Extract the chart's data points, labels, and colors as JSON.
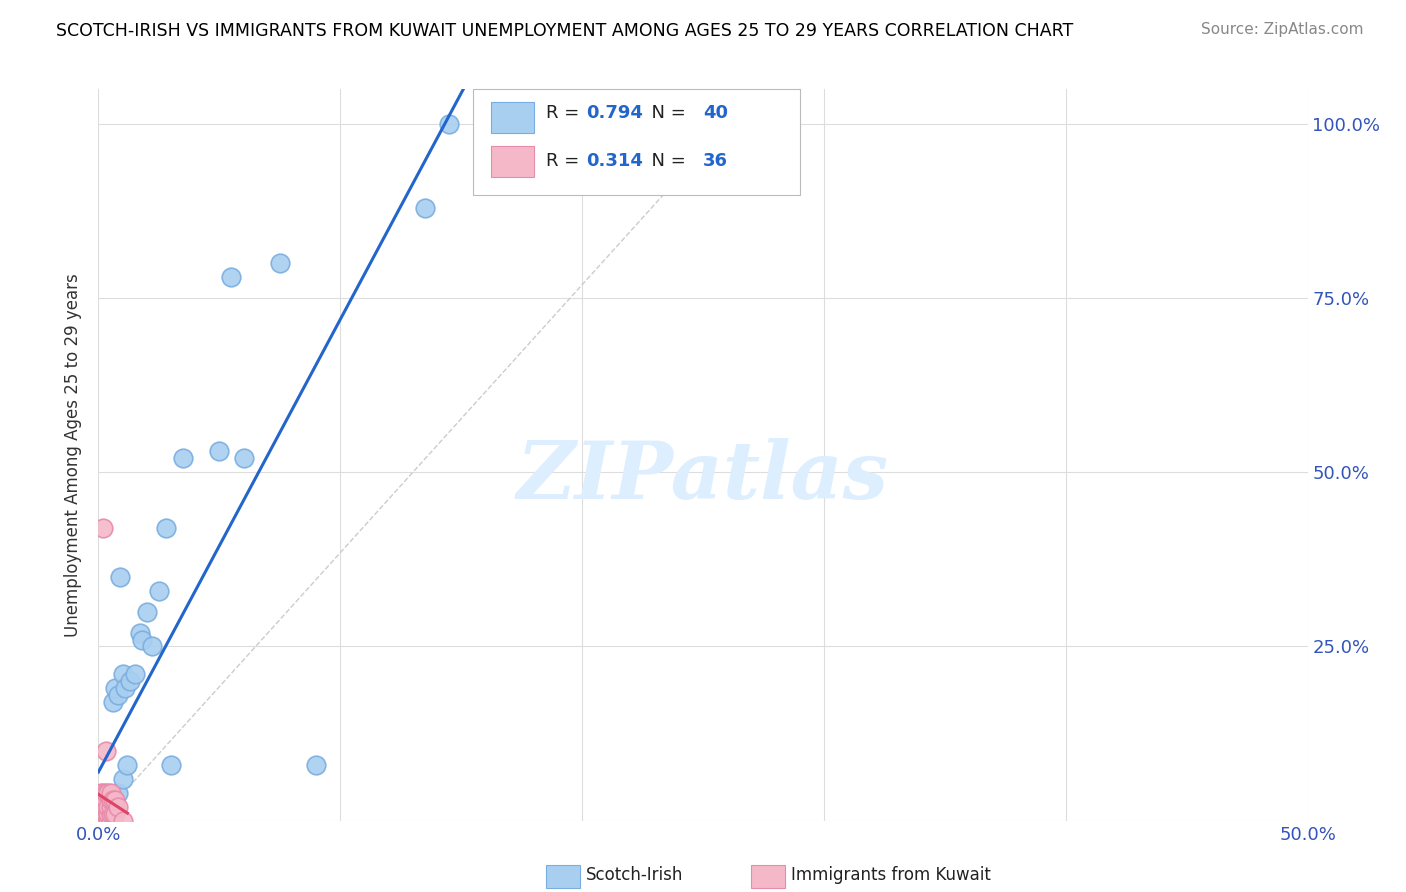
{
  "title": "SCOTCH-IRISH VS IMMIGRANTS FROM KUWAIT UNEMPLOYMENT AMONG AGES 25 TO 29 YEARS CORRELATION CHART",
  "source": "Source: ZipAtlas.com",
  "ylabel": "Unemployment Among Ages 25 to 29 years",
  "xmin": 0.0,
  "xmax": 0.5,
  "ymin": 0.0,
  "ymax": 1.05,
  "blue_color": "#a8cff0",
  "blue_edge": "#7aaee0",
  "pink_color": "#f5b8c8",
  "pink_edge": "#e88aaa",
  "line_blue": "#2266cc",
  "line_pink": "#dd4466",
  "ref_line_color": "#cccccc",
  "watermark_color": "#ddeeff",
  "background_color": "#ffffff",
  "grid_color": "#dddddd",
  "scotch_irish_x": [
    0.001,
    0.001,
    0.002,
    0.002,
    0.003,
    0.003,
    0.003,
    0.004,
    0.004,
    0.005,
    0.005,
    0.005,
    0.006,
    0.006,
    0.007,
    0.007,
    0.008,
    0.008,
    0.009,
    0.01,
    0.01,
    0.011,
    0.012,
    0.013,
    0.015,
    0.017,
    0.018,
    0.02,
    0.022,
    0.025,
    0.028,
    0.03,
    0.035,
    0.05,
    0.055,
    0.06,
    0.075,
    0.09,
    0.135,
    0.145
  ],
  "scotch_irish_y": [
    0.0,
    0.01,
    0.0,
    0.01,
    0.0,
    0.01,
    0.02,
    0.01,
    0.02,
    0.0,
    0.01,
    0.03,
    0.02,
    0.17,
    0.02,
    0.19,
    0.04,
    0.18,
    0.35,
    0.06,
    0.21,
    0.19,
    0.08,
    0.2,
    0.21,
    0.27,
    0.26,
    0.3,
    0.25,
    0.33,
    0.42,
    0.08,
    0.52,
    0.53,
    0.78,
    0.52,
    0.8,
    0.08,
    0.88,
    1.0
  ],
  "kuwait_x": [
    0.0,
    0.0,
    0.0,
    0.0,
    0.001,
    0.001,
    0.001,
    0.001,
    0.001,
    0.002,
    0.002,
    0.002,
    0.002,
    0.002,
    0.002,
    0.003,
    0.003,
    0.003,
    0.003,
    0.003,
    0.003,
    0.004,
    0.004,
    0.004,
    0.004,
    0.005,
    0.005,
    0.005,
    0.005,
    0.005,
    0.006,
    0.006,
    0.007,
    0.007,
    0.008,
    0.01
  ],
  "kuwait_y": [
    0.0,
    0.0,
    0.01,
    0.02,
    0.0,
    0.0,
    0.01,
    0.02,
    0.04,
    0.0,
    0.01,
    0.02,
    0.03,
    0.04,
    0.42,
    0.0,
    0.01,
    0.02,
    0.03,
    0.04,
    0.1,
    0.0,
    0.01,
    0.02,
    0.04,
    0.0,
    0.01,
    0.02,
    0.03,
    0.04,
    0.01,
    0.03,
    0.01,
    0.03,
    0.02,
    0.0
  ]
}
